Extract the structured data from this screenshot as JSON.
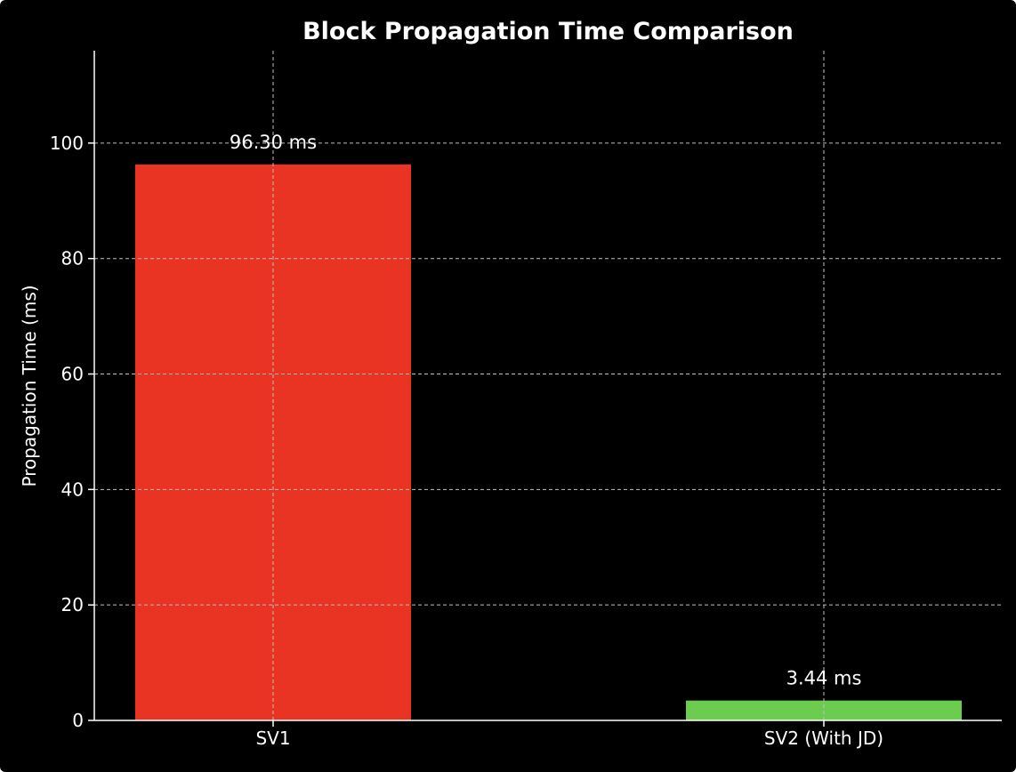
{
  "chart_data": {
    "type": "bar",
    "title": "Block Propagation Time Comparison",
    "xlabel": "",
    "ylabel": "Propagation Time (ms)",
    "categories": [
      "SV1",
      "SV2 (With JD)"
    ],
    "values": [
      96.3,
      3.44
    ],
    "value_labels": [
      "96.30 ms",
      "3.44 ms"
    ],
    "bar_colors": [
      "#e93323",
      "#6ccc4f"
    ],
    "ylim": [
      0,
      116
    ],
    "yticks": [
      0,
      20,
      40,
      60,
      80,
      100
    ],
    "ytick_labels": [
      "0",
      "20",
      "40",
      "60",
      "80",
      "100"
    ],
    "grid": true,
    "legend": false,
    "theme": {
      "background": "#000000",
      "text": "#ffffff",
      "grid": "#bfbfbf"
    }
  }
}
